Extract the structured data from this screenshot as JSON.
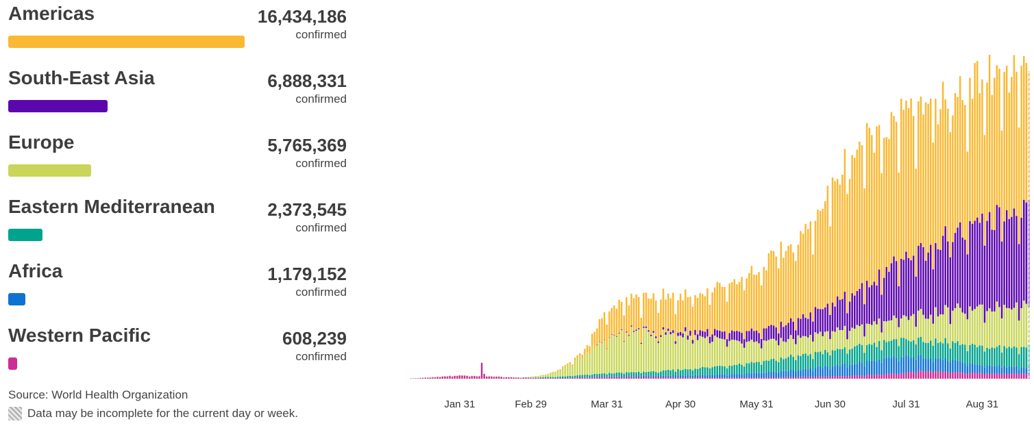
{
  "legend": {
    "items": [
      {
        "name": "Americas",
        "count": "16,434,186",
        "unit": "confirmed",
        "color": "#FBB832"
      },
      {
        "name": "South-East Asia",
        "count": "6,888,331",
        "unit": "confirmed",
        "color": "#5C07AE"
      },
      {
        "name": "Europe",
        "count": "5,765,369",
        "unit": "confirmed",
        "color": "#C9D65A"
      },
      {
        "name": "Eastern Mediterranean",
        "count": "2,373,545",
        "unit": "confirmed",
        "color": "#00A38D"
      },
      {
        "name": "Africa",
        "count": "1,179,152",
        "unit": "confirmed",
        "color": "#0E72D3"
      },
      {
        "name": "Western Pacific",
        "count": "608,239",
        "unit": "confirmed",
        "color": "#CD2D94"
      }
    ]
  },
  "source": "Source: World Health Organization",
  "note": "Data may be incomplete for the current day or week.",
  "chart_data": {
    "type": "bar",
    "stacked": true,
    "title": "",
    "xlabel": "",
    "ylabel": "",
    "x_start": "2020-01-11",
    "x_end": "2020-09-19",
    "ylim": [
      0,
      320000
    ],
    "tick_labels": [
      "Jan 31",
      "Feb 29",
      "Mar 31",
      "Apr 30",
      "May 31",
      "Jun 30",
      "Jul 31",
      "Aug 31"
    ],
    "tick_days": [
      20,
      49,
      80,
      110,
      141,
      171,
      202,
      233
    ],
    "grid": false,
    "incomplete_last_bar": true,
    "weekly_dip": 0.82,
    "series": [
      {
        "name": "Western Pacific",
        "color": "#CD2D94",
        "key_days": [
          0,
          10,
          20,
          28,
          29,
          30,
          31,
          38,
          50,
          60,
          80,
          100,
          120,
          140,
          160,
          180,
          200,
          210,
          220,
          230,
          240,
          251
        ],
        "key_values": [
          300,
          1500,
          3000,
          2500,
          15000,
          4000,
          2500,
          1500,
          800,
          600,
          1500,
          1500,
          1000,
          1000,
          1500,
          2500,
          5000,
          7000,
          6000,
          5000,
          4500,
          4500
        ]
      },
      {
        "name": "Africa",
        "color": "#0E72D3",
        "key_days": [
          0,
          50,
          70,
          90,
          110,
          130,
          150,
          170,
          190,
          200,
          210,
          220,
          230,
          251
        ],
        "key_values": [
          0,
          0,
          300,
          800,
          1500,
          3000,
          5500,
          9000,
          13000,
          15000,
          13000,
          11000,
          8000,
          6000
        ]
      },
      {
        "name": "Eastern Mediterranean",
        "color": "#00A38D",
        "key_days": [
          0,
          45,
          60,
          80,
          100,
          120,
          140,
          160,
          180,
          200,
          220,
          240,
          251
        ],
        "key_values": [
          0,
          0,
          1000,
          3000,
          4000,
          7000,
          10000,
          13000,
          15000,
          16000,
          16000,
          17000,
          19000
        ]
      },
      {
        "name": "Europe",
        "color": "#C9D65A",
        "key_days": [
          0,
          45,
          55,
          65,
          75,
          80,
          90,
          100,
          110,
          120,
          130,
          140,
          150,
          160,
          170,
          180,
          190,
          200,
          210,
          220,
          230,
          240,
          251
        ],
        "key_values": [
          0,
          50,
          2000,
          10000,
          25000,
          32000,
          38000,
          35000,
          32000,
          28000,
          22000,
          18000,
          17000,
          17000,
          18000,
          18000,
          19000,
          20000,
          24000,
          30000,
          33000,
          38000,
          40000
        ]
      },
      {
        "name": "South-East Asia",
        "color": "#5C07AE",
        "key_days": [
          0,
          75,
          85,
          100,
          110,
          120,
          130,
          140,
          150,
          160,
          170,
          180,
          190,
          200,
          210,
          220,
          230,
          240,
          251
        ],
        "key_values": [
          0,
          0,
          500,
          1500,
          3000,
          6000,
          8000,
          10000,
          13000,
          18000,
          24000,
          30000,
          40000,
          52000,
          60000,
          68000,
          75000,
          85000,
          90000
        ]
      },
      {
        "name": "Americas",
        "color": "#FBB832",
        "key_days": [
          0,
          50,
          60,
          70,
          80,
          90,
          100,
          110,
          120,
          130,
          140,
          150,
          160,
          170,
          180,
          190,
          200,
          210,
          220,
          230,
          240,
          251
        ],
        "key_values": [
          0,
          0,
          500,
          3000,
          25000,
          30000,
          32000,
          33000,
          36000,
          45000,
          55000,
          65000,
          75000,
          100000,
          130000,
          135000,
          135000,
          130000,
          125000,
          130000,
          130000,
          125000
        ]
      }
    ]
  }
}
